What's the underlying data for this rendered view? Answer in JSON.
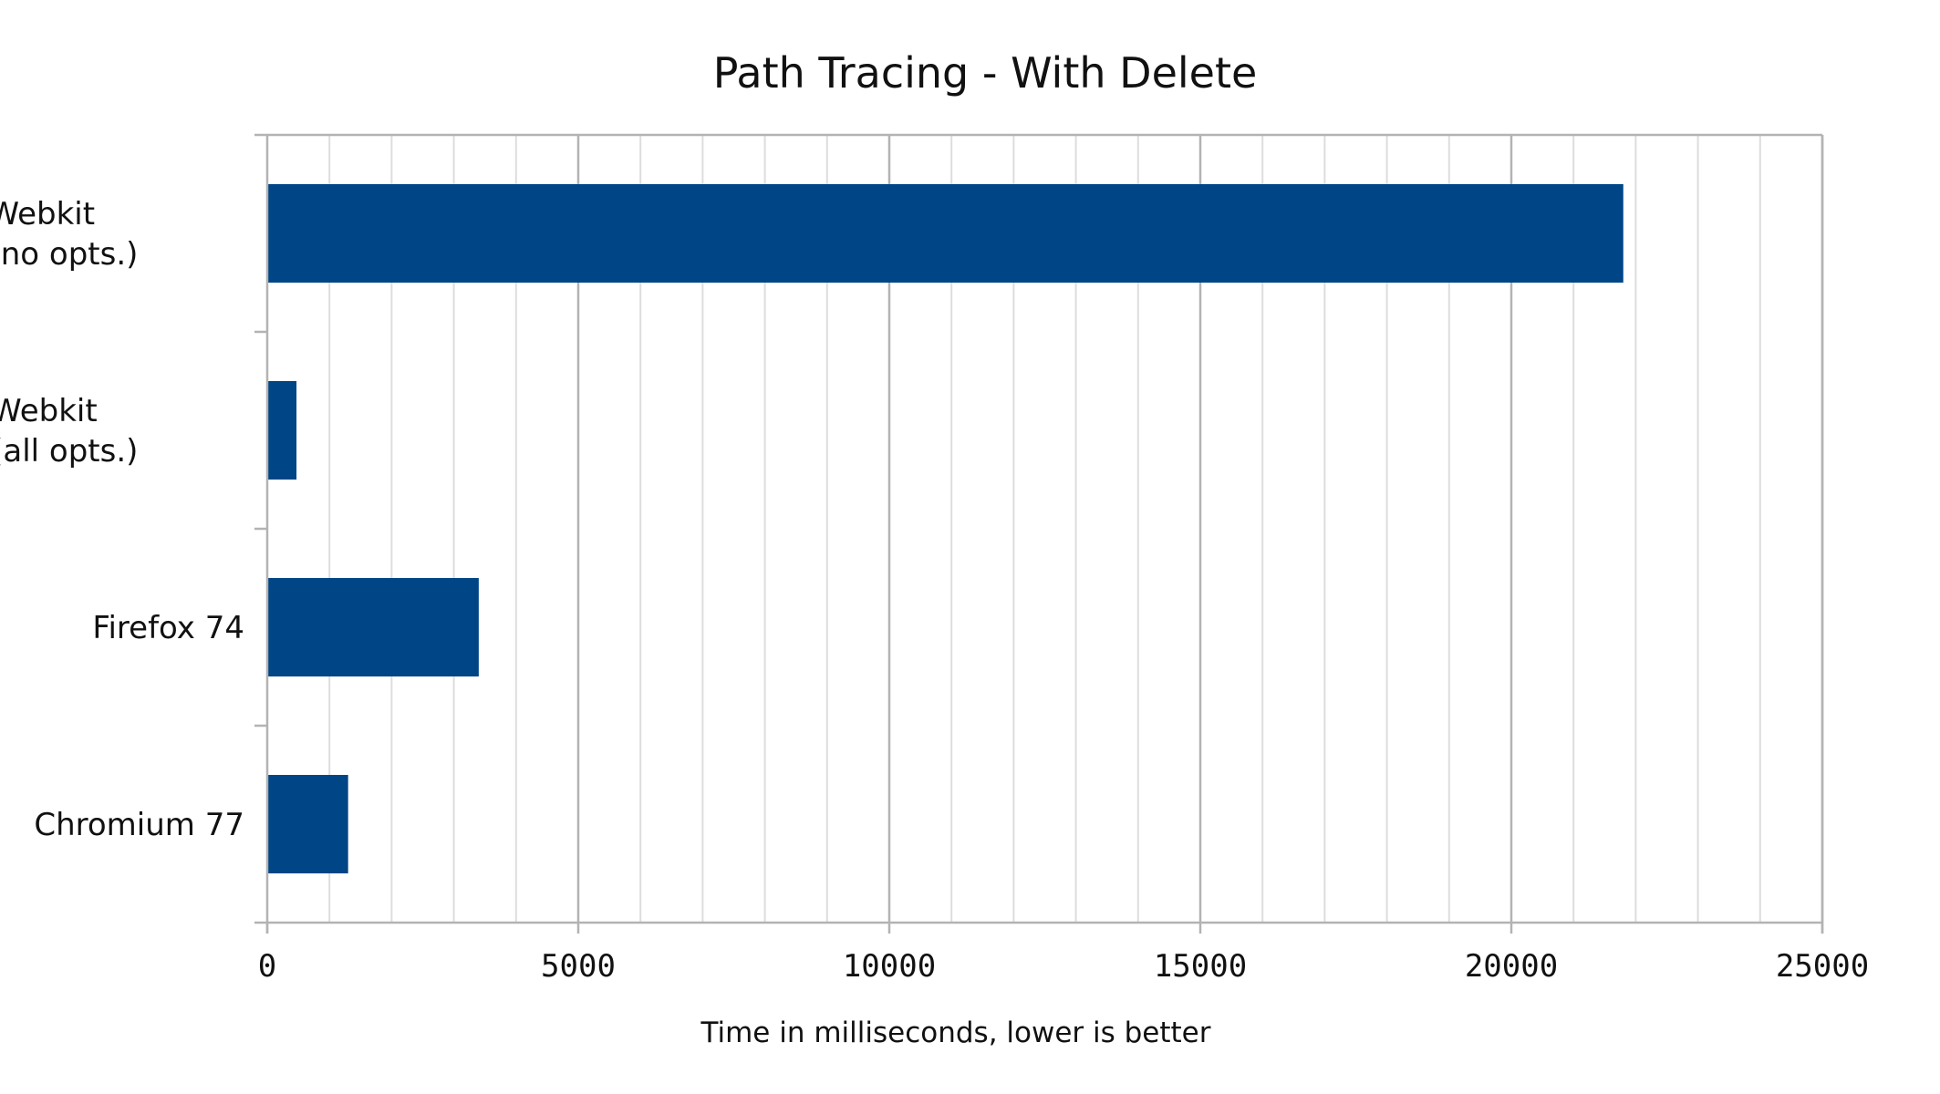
{
  "chart_data": {
    "type": "bar",
    "orientation": "horizontal",
    "title": "Path Tracing - With Delete",
    "xlabel": "Time in milliseconds, lower is better",
    "ylabel": "",
    "categories": [
      [
        "Webkit",
        "(no opts.)"
      ],
      [
        "Webkit",
        "(all opts.)"
      ],
      [
        "Firefox 74"
      ],
      [
        "Chromium 77"
      ]
    ],
    "values": [
      21800,
      470,
      3400,
      1300
    ],
    "xlim": [
      0,
      25000
    ],
    "major_ticks": [
      0,
      5000,
      10000,
      15000,
      20000,
      25000
    ],
    "minor_step": 1000,
    "grid": true,
    "legend": "none",
    "colors": {
      "bar": "#004586",
      "major_grid": "#b3b3b3",
      "minor_grid": "#dddddd",
      "axis": "#b3b3b3"
    }
  }
}
